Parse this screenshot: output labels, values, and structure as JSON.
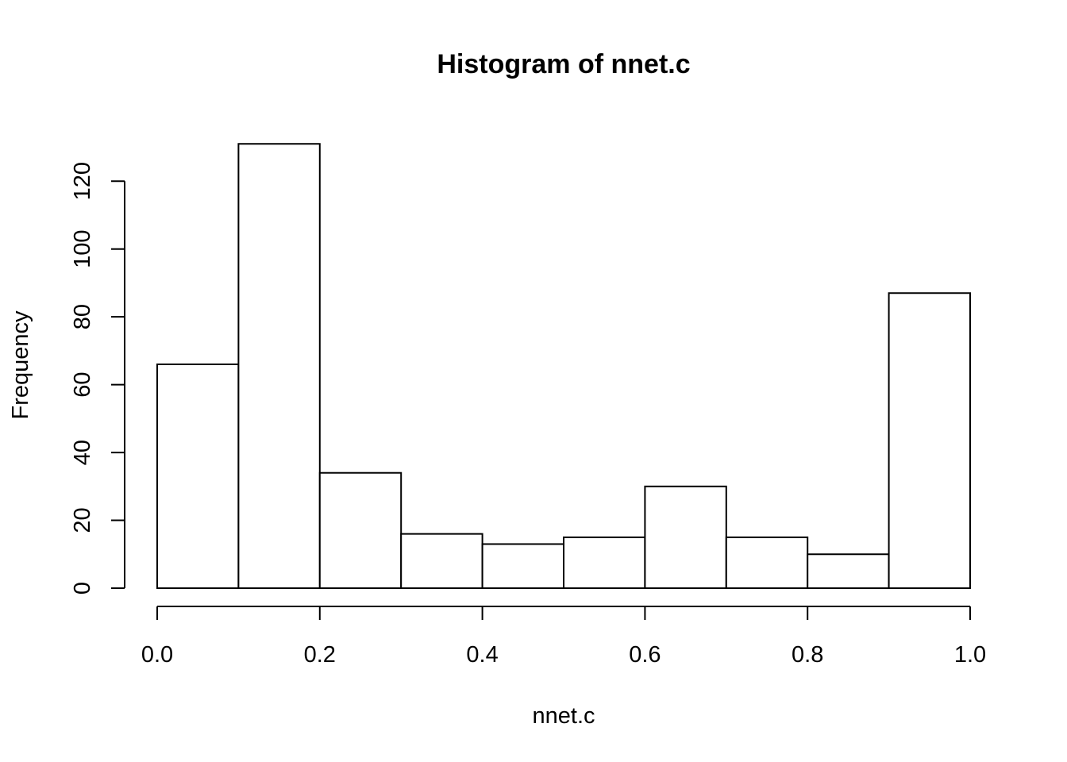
{
  "chart_data": {
    "type": "bar",
    "title": "Histogram of nnet.c",
    "xlabel": "nnet.c",
    "ylabel": "Frequency",
    "bins": [
      {
        "from": 0.0,
        "to": 0.1,
        "count": 66
      },
      {
        "from": 0.1,
        "to": 0.2,
        "count": 131
      },
      {
        "from": 0.2,
        "to": 0.3,
        "count": 34
      },
      {
        "from": 0.3,
        "to": 0.4,
        "count": 16
      },
      {
        "from": 0.4,
        "to": 0.5,
        "count": 13
      },
      {
        "from": 0.5,
        "to": 0.6,
        "count": 15
      },
      {
        "from": 0.6,
        "to": 0.7,
        "count": 30
      },
      {
        "from": 0.7,
        "to": 0.8,
        "count": 15
      },
      {
        "from": 0.8,
        "to": 0.9,
        "count": 10
      },
      {
        "from": 0.9,
        "to": 1.0,
        "count": 87
      }
    ],
    "xlim": [
      0.0,
      1.0
    ],
    "ylim": [
      0,
      131
    ],
    "xticks": [
      {
        "value": 0.0,
        "label": "0.0"
      },
      {
        "value": 0.2,
        "label": "0.2"
      },
      {
        "value": 0.4,
        "label": "0.4"
      },
      {
        "value": 0.6,
        "label": "0.6"
      },
      {
        "value": 0.8,
        "label": "0.8"
      },
      {
        "value": 1.0,
        "label": "1.0"
      }
    ],
    "yticks": [
      {
        "value": 0,
        "label": "0"
      },
      {
        "value": 20,
        "label": "20"
      },
      {
        "value": 40,
        "label": "40"
      },
      {
        "value": 60,
        "label": "60"
      },
      {
        "value": 80,
        "label": "80"
      },
      {
        "value": 100,
        "label": "100"
      },
      {
        "value": 120,
        "label": "120"
      }
    ],
    "grid": false,
    "bar_fill": "#ffffff",
    "bar_stroke": "#000000"
  }
}
